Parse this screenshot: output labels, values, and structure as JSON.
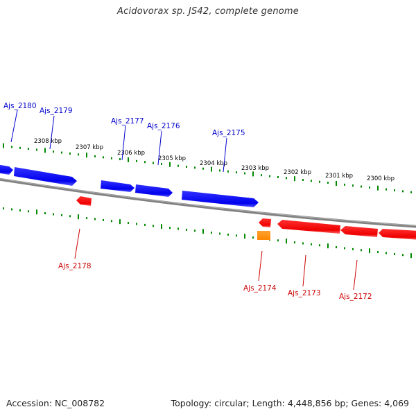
{
  "title": "Acidovorax sp. JS42, complete genome",
  "footer": {
    "accession": "Accession: NC_008782",
    "summary": "Topology: circular; Length: 4,448,856 bp; Genes: 4,069"
  },
  "colors": {
    "forward_gene": "#0000ee",
    "reverse_gene": "#ee0000",
    "other_feature": "#ff8800",
    "ticks": "#008800",
    "backbone": "#808080"
  },
  "ticks": [
    "2308 kbp",
    "2307 kbp",
    "2306 kbp",
    "2305 kbp",
    "2304 kbp",
    "2303 kbp",
    "2302 kbp",
    "2301 kbp",
    "2300 kbp"
  ],
  "genes_top": [
    "Ajs_2180",
    "Ajs_2179",
    "Ajs_2177",
    "Ajs_2176",
    "Ajs_2175"
  ],
  "genes_bottom": [
    "Ajs_2178",
    "Ajs_2174",
    "Ajs_2173",
    "Ajs_2172"
  ]
}
